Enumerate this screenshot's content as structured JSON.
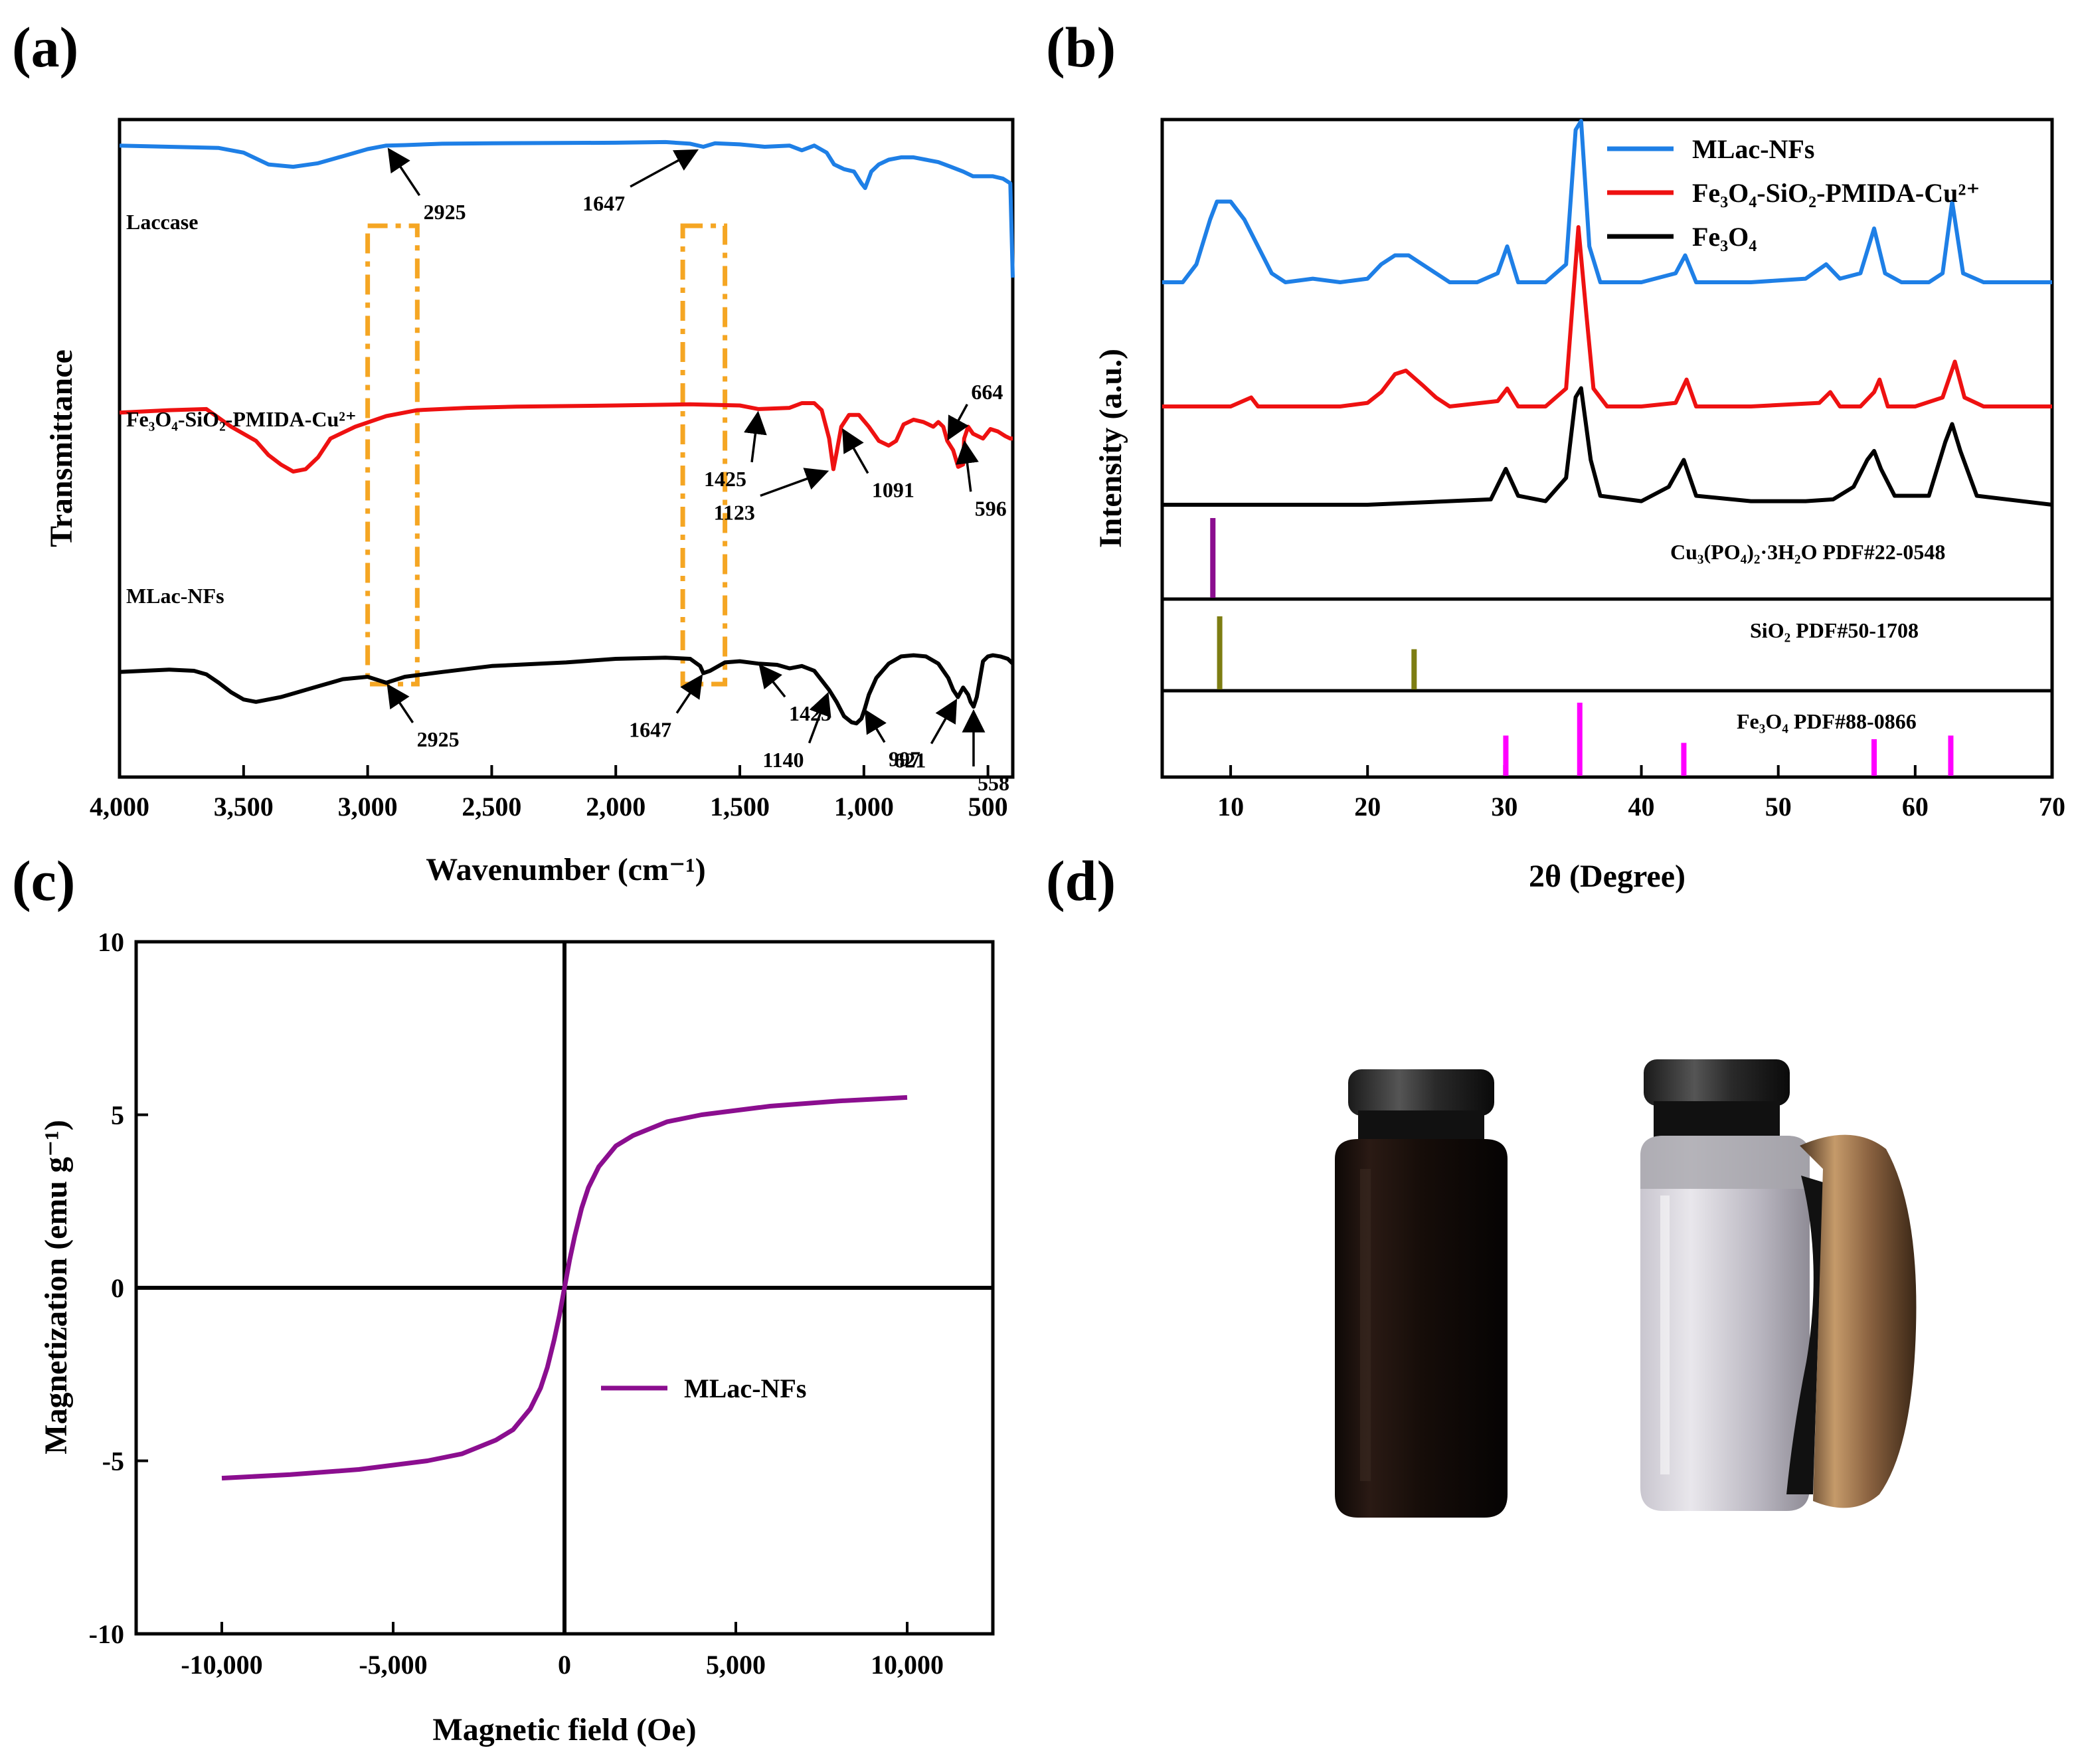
{
  "panels": {
    "a": "(a)",
    "b": "(b)",
    "c": "(c)",
    "d": "(d)"
  },
  "colors": {
    "blue": "#1e7fe6",
    "red": "#ee1111",
    "black": "#000000",
    "purple": "#8b0e8f",
    "olive": "#7d7d12",
    "magenta": "#ff00ff",
    "orange": "#f5a623"
  },
  "chart_data": [
    {
      "id": "a",
      "type": "line",
      "title": "",
      "xlabel": "Wavenumber (cm⁻¹)",
      "ylabel": "Transmittance",
      "xlim": [
        4000,
        400
      ],
      "xticks": [
        "4,000",
        "3,500",
        "3,000",
        "2,500",
        "2,000",
        "1,500",
        "1,000",
        "500"
      ],
      "xtick_values": [
        4000,
        3500,
        3000,
        2500,
        2000,
        1500,
        1000,
        500
      ],
      "yticks": "none",
      "series": [
        {
          "name": "Laccase",
          "color": "#1e7fe6",
          "x": [
            4000,
            3800,
            3600,
            3500,
            3400,
            3300,
            3200,
            3100,
            3000,
            2925,
            2850,
            2700,
            2500,
            2000,
            1800,
            1700,
            1647,
            1600,
            1500,
            1400,
            1300,
            1250,
            1200,
            1150,
            1120,
            1080,
            1040,
            1010,
            995,
            970,
            940,
            900,
            850,
            800,
            750,
            700,
            650,
            600,
            560,
            520,
            480,
            440,
            410,
            400
          ],
          "y": [
            0.96,
            0.955,
            0.95,
            0.93,
            0.88,
            0.87,
            0.885,
            0.915,
            0.945,
            0.96,
            0.962,
            0.968,
            0.97,
            0.972,
            0.975,
            0.968,
            0.955,
            0.97,
            0.965,
            0.955,
            0.96,
            0.94,
            0.96,
            0.93,
            0.88,
            0.86,
            0.85,
            0.8,
            0.78,
            0.85,
            0.88,
            0.9,
            0.91,
            0.91,
            0.9,
            0.89,
            0.87,
            0.85,
            0.83,
            0.83,
            0.83,
            0.82,
            0.8,
            0.4
          ]
        },
        {
          "name": "Fe₃O₄-SiO₂-PMIDA-Cu²⁺",
          "color": "#ee1111",
          "x": [
            4000,
            3800,
            3650,
            3550,
            3450,
            3400,
            3350,
            3300,
            3250,
            3200,
            3150,
            3050,
            2925,
            2800,
            2600,
            2400,
            2000,
            1700,
            1500,
            1425,
            1300,
            1250,
            1200,
            1170,
            1140,
            1123,
            1110,
            1091,
            1060,
            1020,
            980,
            940,
            900,
            870,
            840,
            800,
            760,
            720,
            700,
            680,
            664,
            640,
            620,
            600,
            596,
            580,
            560,
            520,
            490,
            460,
            430,
            410,
            400
          ],
          "y": [
            0.56,
            0.57,
            0.575,
            0.5,
            0.44,
            0.38,
            0.34,
            0.31,
            0.32,
            0.37,
            0.45,
            0.5,
            0.545,
            0.57,
            0.58,
            0.585,
            0.59,
            0.595,
            0.59,
            0.575,
            0.58,
            0.6,
            0.6,
            0.57,
            0.45,
            0.32,
            0.39,
            0.5,
            0.55,
            0.55,
            0.5,
            0.44,
            0.42,
            0.44,
            0.51,
            0.53,
            0.52,
            0.5,
            0.52,
            0.5,
            0.44,
            0.4,
            0.33,
            0.34,
            0.45,
            0.5,
            0.47,
            0.45,
            0.49,
            0.48,
            0.46,
            0.45,
            0.45
          ]
        },
        {
          "name": "MLac-NFs",
          "color": "#000000",
          "x": [
            4000,
            3900,
            3800,
            3700,
            3650,
            3600,
            3550,
            3500,
            3450,
            3400,
            3350,
            3300,
            3200,
            3100,
            3000,
            2925,
            2850,
            2700,
            2500,
            2200,
            2000,
            1800,
            1700,
            1660,
            1647,
            1620,
            1560,
            1500,
            1425,
            1350,
            1300,
            1250,
            1200,
            1170,
            1140,
            1110,
            1080,
            1050,
            1030,
            1010,
            997,
            980,
            950,
            900,
            850,
            800,
            750,
            700,
            660,
            640,
            621,
            600,
            580,
            570,
            558,
            545,
            520,
            500,
            480,
            450,
            420,
            400
          ],
          "y": [
            0.245,
            0.25,
            0.255,
            0.25,
            0.235,
            0.2,
            0.16,
            0.13,
            0.12,
            0.13,
            0.14,
            0.155,
            0.185,
            0.215,
            0.225,
            0.2,
            0.225,
            0.245,
            0.27,
            0.285,
            0.3,
            0.305,
            0.3,
            0.27,
            0.24,
            0.25,
            0.285,
            0.29,
            0.28,
            0.275,
            0.26,
            0.27,
            0.25,
            0.21,
            0.17,
            0.12,
            0.06,
            0.035,
            0.03,
            0.05,
            0.09,
            0.15,
            0.22,
            0.28,
            0.31,
            0.315,
            0.31,
            0.28,
            0.22,
            0.17,
            0.14,
            0.18,
            0.15,
            0.12,
            0.1,
            0.14,
            0.29,
            0.31,
            0.315,
            0.31,
            0.3,
            0.28
          ]
        }
      ],
      "annotations": [
        {
          "text": "2925",
          "series": "Laccase",
          "target_x": 2925
        },
        {
          "text": "1647",
          "series": "Laccase",
          "target_x": 1647
        },
        {
          "text": "1425",
          "series": "Fe₃O₄-SiO₂-PMIDA-Cu²⁺",
          "target_x": 1425
        },
        {
          "text": "1123",
          "series": "Fe₃O₄-SiO₂-PMIDA-Cu²⁺",
          "target_x": 1123
        },
        {
          "text": "1091",
          "series": "Fe₃O₄-SiO₂-PMIDA-Cu²⁺",
          "target_x": 1091
        },
        {
          "text": "664",
          "series": "Fe₃O₄-SiO₂-PMIDA-Cu²⁺",
          "target_x": 664
        },
        {
          "text": "596",
          "series": "Fe₃O₄-SiO₂-PMIDA-Cu²⁺",
          "target_x": 596
        },
        {
          "text": "2925",
          "series": "MLac-NFs",
          "target_x": 2925
        },
        {
          "text": "1647",
          "series": "MLac-NFs",
          "target_x": 1647
        },
        {
          "text": "1425",
          "series": "MLac-NFs",
          "target_x": 1425
        },
        {
          "text": "1140",
          "series": "MLac-NFs",
          "target_x": 1140
        },
        {
          "text": "997",
          "series": "MLac-NFs",
          "target_x": 997
        },
        {
          "text": "621",
          "series": "MLac-NFs",
          "target_x": 621
        },
        {
          "text": "558",
          "series": "MLac-NFs",
          "target_x": 558
        }
      ],
      "highlight_ranges": [
        [
          3000,
          2800
        ],
        [
          1730,
          1560
        ]
      ]
    },
    {
      "id": "b",
      "type": "line",
      "title": "",
      "xlabel": "2θ (Degree)",
      "ylabel": "Intensity (a.u.)",
      "xlim": [
        5,
        70
      ],
      "xticks": [
        "10",
        "20",
        "30",
        "40",
        "50",
        "60",
        "70"
      ],
      "xtick_values": [
        10,
        20,
        30,
        40,
        50,
        60,
        70
      ],
      "legend": [
        "MLac-NFs",
        "Fe₃O₄-SiO₂-PMIDA-Cu²⁺",
        "Fe₃O₄"
      ],
      "legend_position": "top-right",
      "series": [
        {
          "name": "MLac-NFs",
          "color": "#1e7fe6",
          "x": [
            5,
            6.5,
            7.5,
            8.5,
            9,
            10,
            11,
            12,
            13,
            14,
            16,
            18,
            20,
            21,
            22,
            23,
            24,
            25,
            26,
            28,
            29.5,
            30.2,
            31,
            33,
            34.5,
            35.2,
            35.6,
            36.2,
            37,
            40,
            42.5,
            43.2,
            44,
            48,
            52,
            53.5,
            54.5,
            56,
            57,
            57.8,
            59,
            61,
            62,
            62.7,
            63.5,
            65,
            70
          ],
          "y": [
            1.0,
            1.0,
            1.1,
            1.35,
            1.45,
            1.45,
            1.35,
            1.2,
            1.05,
            1.0,
            1.02,
            1.0,
            1.02,
            1.1,
            1.15,
            1.15,
            1.1,
            1.05,
            1.0,
            1.0,
            1.05,
            1.2,
            1.0,
            1.0,
            1.1,
            1.85,
            1.9,
            1.2,
            1.0,
            1.0,
            1.05,
            1.15,
            1.0,
            1.0,
            1.02,
            1.1,
            1.02,
            1.05,
            1.3,
            1.05,
            1.0,
            1.0,
            1.05,
            1.45,
            1.05,
            1.0,
            1.0
          ]
        },
        {
          "name": "Fe₃O₄-SiO₂-PMIDA-Cu²⁺",
          "color": "#ee1111",
          "x": [
            5,
            8,
            10,
            11.5,
            12,
            13,
            18,
            20,
            21,
            22,
            22.8,
            24,
            25,
            26,
            29.5,
            30.2,
            31,
            33,
            34.5,
            35,
            35.4,
            36,
            36.5,
            37.5,
            40,
            42.5,
            43.3,
            44,
            48,
            53,
            53.8,
            54.5,
            56,
            57,
            57.4,
            58,
            60,
            62,
            62.9,
            63.6,
            65,
            70
          ],
          "y": [
            1.0,
            1.0,
            1.0,
            1.05,
            1.0,
            1.0,
            1.0,
            1.02,
            1.08,
            1.18,
            1.2,
            1.12,
            1.05,
            1.0,
            1.03,
            1.1,
            1.0,
            1.0,
            1.1,
            1.6,
            2.0,
            1.5,
            1.1,
            1.0,
            1.0,
            1.02,
            1.15,
            1.0,
            1.0,
            1.02,
            1.08,
            1.0,
            1.0,
            1.08,
            1.15,
            1.0,
            1.0,
            1.05,
            1.25,
            1.05,
            1.0,
            1.0
          ]
        },
        {
          "name": "Fe₃O₄",
          "color": "#000000",
          "x": [
            5,
            10,
            20,
            29,
            30.1,
            31,
            33,
            34.5,
            35.2,
            35.6,
            36.3,
            37,
            40,
            42,
            43.1,
            44,
            48,
            52,
            54,
            55.5,
            56.5,
            57,
            57.5,
            58.5,
            61,
            62.2,
            62.7,
            63.3,
            64.5,
            70
          ],
          "y": [
            1.0,
            1.0,
            1.0,
            1.03,
            1.2,
            1.05,
            1.02,
            1.15,
            1.6,
            1.65,
            1.25,
            1.05,
            1.02,
            1.1,
            1.25,
            1.05,
            1.02,
            1.02,
            1.03,
            1.1,
            1.25,
            1.3,
            1.2,
            1.05,
            1.05,
            1.35,
            1.45,
            1.3,
            1.05,
            1.0
          ]
        }
      ],
      "reference_patterns": [
        {
          "label": "Cu₃(PO₄)₂·3H₂O  PDF#22-0548",
          "color": "#8b0e8f",
          "positions": [
            8.7
          ],
          "heights": [
            1.0
          ]
        },
        {
          "label": "SiO₂  PDF#50-1708",
          "color": "#7d7d12",
          "positions": [
            9.2,
            23.4
          ],
          "heights": [
            1.0,
            0.55
          ]
        },
        {
          "label": "Fe₃O₄  PDF#88-0866",
          "color": "#ff00ff",
          "positions": [
            30.1,
            35.5,
            43.1,
            57.0,
            62.6
          ],
          "heights": [
            0.55,
            1.0,
            0.45,
            0.5,
            0.55
          ]
        }
      ]
    },
    {
      "id": "c",
      "type": "line",
      "title": "",
      "xlabel": "Magnetic field (Oe)",
      "ylabel": "Magnetization (emu g⁻¹)",
      "xlim": [
        -12500,
        12500
      ],
      "ylim": [
        -10,
        10
      ],
      "xticks": [
        "-10,000",
        "-5,000",
        "0",
        "5,000",
        "10,000"
      ],
      "xtick_values": [
        -10000,
        -5000,
        0,
        5000,
        10000
      ],
      "yticks": [
        "-10",
        "-5",
        "0",
        "5",
        "10"
      ],
      "ytick_values": [
        -10,
        -5,
        0,
        5,
        10
      ],
      "legend": [
        "MLac-NFs"
      ],
      "legend_position": "center",
      "series": [
        {
          "name": "MLac-NFs",
          "color": "#8b0e8f",
          "x": [
            -10000,
            -8000,
            -6000,
            -4000,
            -3000,
            -2000,
            -1500,
            -1000,
            -700,
            -500,
            -300,
            -150,
            0,
            150,
            300,
            500,
            700,
            1000,
            1500,
            2000,
            3000,
            4000,
            6000,
            8000,
            10000
          ],
          "y": [
            -5.5,
            -5.4,
            -5.25,
            -5.0,
            -4.8,
            -4.4,
            -4.1,
            -3.5,
            -2.9,
            -2.3,
            -1.5,
            -0.8,
            0,
            0.8,
            1.5,
            2.3,
            2.9,
            3.5,
            4.1,
            4.4,
            4.8,
            5.0,
            5.25,
            5.4,
            5.5
          ]
        }
      ]
    }
  ]
}
